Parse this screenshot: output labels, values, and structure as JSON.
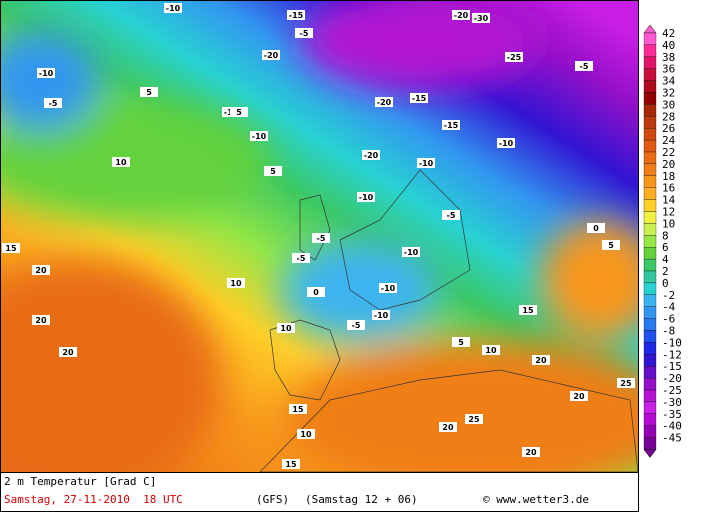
{
  "map": {
    "labels": [
      "-10",
      "-5",
      "-10",
      "-20",
      "-15",
      "-10",
      "-20",
      "-30",
      "-25",
      "-10",
      "-5",
      "-5",
      "-10",
      "-20",
      "-15",
      "-10",
      "-15",
      "-20",
      "-10",
      "-5",
      "-10",
      "-10",
      "5",
      "10",
      "15",
      "20",
      "20",
      "20",
      "10",
      "5",
      "5",
      "-5",
      "0",
      "-5",
      "-10",
      "-5",
      "5",
      "10",
      "15",
      "20",
      "25",
      "20",
      "20",
      "15",
      "10",
      "25",
      "20",
      "15",
      "0",
      "5",
      "10"
    ]
  },
  "colorbar": {
    "labels": [
      "42",
      "40",
      "38",
      "36",
      "34",
      "32",
      "30",
      "28",
      "26",
      "24",
      "22",
      "20",
      "18",
      "16",
      "14",
      "12",
      "10",
      "8",
      "6",
      "4",
      "2",
      "0",
      "-2",
      "-4",
      "-6",
      "-8",
      "-10",
      "-12",
      "-15",
      "-20",
      "-25",
      "-30",
      "-35",
      "-40",
      "-45"
    ],
    "colors": [
      "#ff5ad2",
      "#ff2a98",
      "#e01468",
      "#c8103c",
      "#b00a1e",
      "#940000",
      "#a82808",
      "#bc3c10",
      "#d04a10",
      "#e05a12",
      "#e86c14",
      "#f07e18",
      "#f8961c",
      "#ffae24",
      "#ffd028",
      "#f0f040",
      "#c8f050",
      "#96e646",
      "#64d23c",
      "#3cc864",
      "#32c8a0",
      "#28d2d2",
      "#3cb4f0",
      "#3296f0",
      "#2878f0",
      "#2050f0",
      "#1e28e6",
      "#3214d2",
      "#6410c8",
      "#9610c8",
      "#b414d2",
      "#c81ee6",
      "#b40ad2",
      "#9600b4",
      "#780096"
    ]
  },
  "footer": {
    "title": "2 m Temperatur [Grad C]",
    "date": "Samstag, 27-11-2010  18 UTC",
    "model": "(GFS)",
    "run": "(Samstag 12 + 06)",
    "credit": "© www.wetter3.de"
  }
}
